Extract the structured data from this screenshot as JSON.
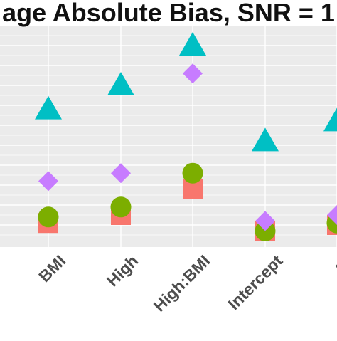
{
  "chart_data": {
    "type": "scatter",
    "title": "age Absolute Bias, SNR = 1",
    "categories": [
      "BMI",
      "High",
      "High:BMI",
      "Intercept",
      "Mi"
    ],
    "grid": true,
    "panel_background": "#ebebeb",
    "grid_color": "#ffffff",
    "series": [
      {
        "shape": "square",
        "color": "#f8766d",
        "values": [
          0.55,
          0.75,
          1.4,
          0.35,
          0.5
        ]
      },
      {
        "shape": "circle",
        "color": "#7cae00",
        "values": [
          0.7,
          0.95,
          1.8,
          0.35,
          0.55
        ]
      },
      {
        "shape": "diamond",
        "color": "#c77cff",
        "values": [
          1.6,
          1.8,
          4.3,
          0.6,
          0.75
        ]
      },
      {
        "shape": "triangle",
        "color": "#00bfc4",
        "values": [
          3.4,
          4.0,
          5.0,
          2.6,
          3.1
        ]
      }
    ],
    "ylim": [
      0,
      5.5
    ]
  }
}
